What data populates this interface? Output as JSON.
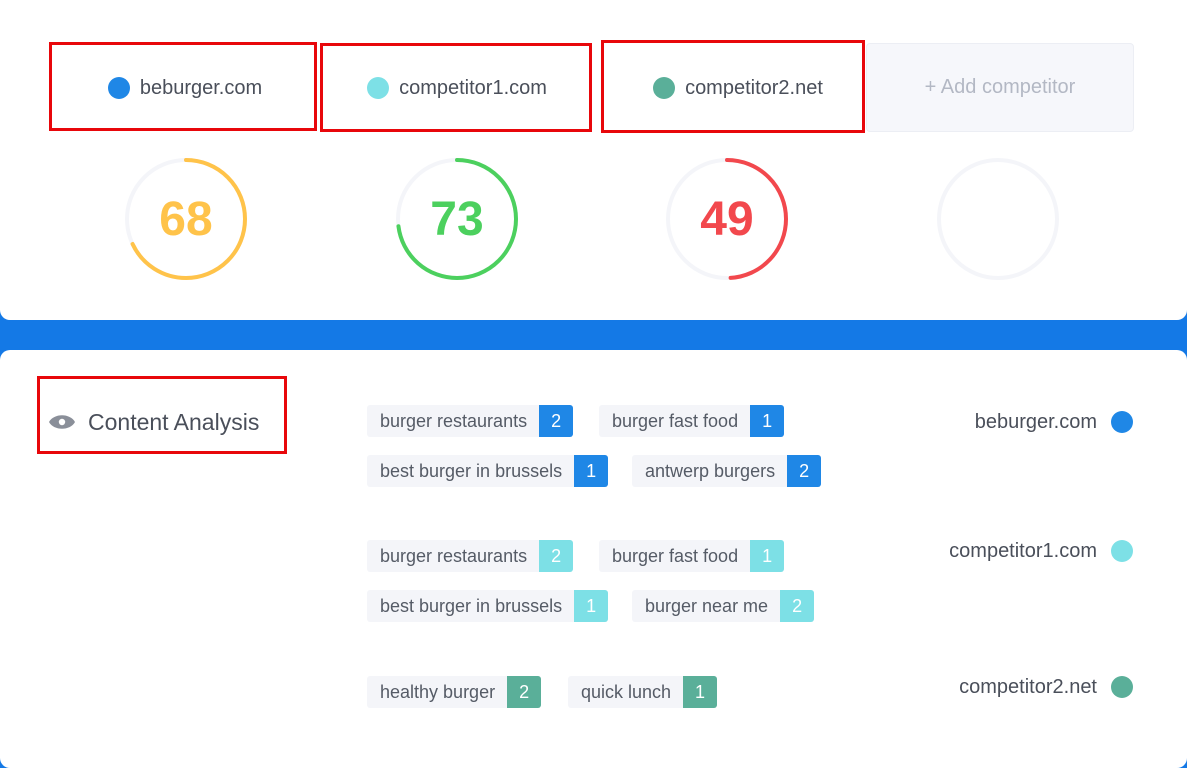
{
  "sites": [
    {
      "name": "beburger.com",
      "color": "#1f87e6",
      "score": 68,
      "score_color": "#ffc34a"
    },
    {
      "name": "competitor1.com",
      "color": "#7de0e6",
      "score": 73,
      "score_color": "#4cd05e"
    },
    {
      "name": "competitor2.net",
      "color": "#5aaf99",
      "score": 49,
      "score_color": "#f2484d"
    }
  ],
  "add_competitor_label": "+ Add competitor",
  "content_analysis": {
    "title": "Content Analysis",
    "icon": "eye-icon",
    "groups": [
      {
        "site": "beburger.com",
        "color": "#1f87e6",
        "keywords": [
          {
            "text": "burger restaurants",
            "count": "2"
          },
          {
            "text": "burger fast food",
            "count": "1"
          },
          {
            "text": "best burger in brussels",
            "count": "1"
          },
          {
            "text": "antwerp burgers",
            "count": "2"
          }
        ]
      },
      {
        "site": "competitor1.com",
        "color": "#7de0e6",
        "keywords": [
          {
            "text": "burger restaurants",
            "count": "2"
          },
          {
            "text": "burger fast food",
            "count": "1"
          },
          {
            "text": "best burger in brussels",
            "count": "1"
          },
          {
            "text": "burger near me",
            "count": "2"
          }
        ]
      },
      {
        "site": "competitor2.net",
        "color": "#5aaf99",
        "keywords": [
          {
            "text": "healthy burger",
            "count": "2"
          },
          {
            "text": "quick lunch",
            "count": "1"
          }
        ]
      }
    ]
  }
}
